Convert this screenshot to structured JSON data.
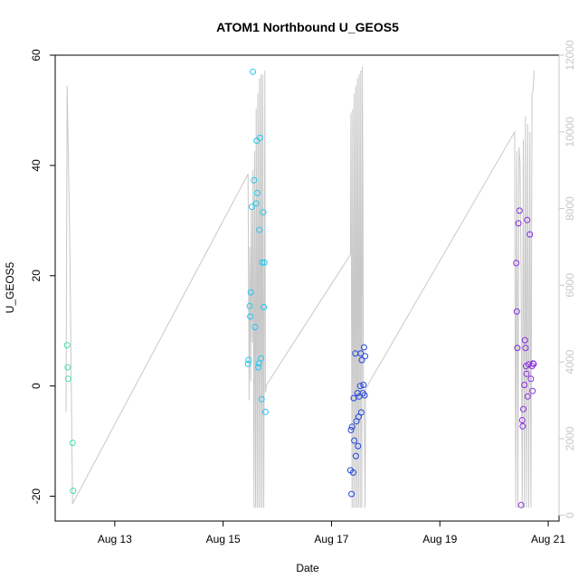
{
  "chart_data": {
    "type": "scatter",
    "title": "ATOM1 Northbound U_GEOS5",
    "xlabel": "Date",
    "ylabel": "U_GEOS5",
    "x_unit": "days since Aug 12 00:00",
    "xlim": [
      11.9,
      21.2
    ],
    "ylim": [
      -24.5,
      60
    ],
    "y2lim": [
      -150,
      12000
    ],
    "x_ticks": [
      {
        "value": 13,
        "label": "Aug 13"
      },
      {
        "value": 15,
        "label": "Aug 15"
      },
      {
        "value": 17,
        "label": "Aug 17"
      },
      {
        "value": 19,
        "label": "Aug 19"
      },
      {
        "value": 21,
        "label": "Aug 21"
      }
    ],
    "y_ticks": [
      -20,
      0,
      20,
      40,
      60
    ],
    "y2_ticks": [
      0,
      2000,
      4000,
      6000,
      8000,
      10000,
      12000
    ],
    "grid": false,
    "legend": "none",
    "colors": {
      "flight1": "#40e0b0",
      "flight2": "#22c8f0",
      "flight3": "#2244dd",
      "flight4": "#8a2be2",
      "altitude": "#c8c8c8",
      "axis": "#000000",
      "right_axis": "#c8c8c8"
    },
    "series": [
      {
        "color": "#40e0b0",
        "x": [
          12.12,
          12.13,
          12.14,
          12.22,
          12.23
        ],
        "y": [
          7.4,
          3.4,
          1.3,
          -10.3,
          -19.0
        ]
      },
      {
        "color": "#22c8f0",
        "x": [
          15.46,
          15.47,
          15.49,
          15.5,
          15.51,
          15.53,
          15.55,
          15.57,
          15.59,
          15.61,
          15.62,
          15.63,
          15.65,
          15.66,
          15.67,
          15.68,
          15.7,
          15.71,
          15.72,
          15.74,
          15.75,
          15.76,
          15.78
        ],
        "y": [
          4.0,
          4.7,
          14.5,
          12.6,
          17.0,
          32.5,
          57.0,
          37.3,
          10.7,
          33.1,
          44.5,
          35.0,
          3.4,
          4.1,
          28.3,
          45.0,
          5.0,
          -2.4,
          22.4,
          31.5,
          14.3,
          22.4,
          -4.7
        ]
      },
      {
        "color": "#2244dd",
        "x": [
          17.35,
          17.36,
          17.37,
          17.38,
          17.4,
          17.41,
          17.42,
          17.44,
          17.45,
          17.46,
          17.48,
          17.49,
          17.5,
          17.51,
          17.53,
          17.54,
          17.55,
          17.56,
          17.58,
          17.59,
          17.6,
          17.61,
          17.62
        ],
        "y": [
          -15.3,
          -8.0,
          -19.6,
          -7.4,
          -15.7,
          -2.2,
          -9.9,
          5.9,
          -12.7,
          -6.4,
          -1.3,
          -10.9,
          -5.6,
          -1.9,
          0.0,
          5.9,
          -4.8,
          4.7,
          -1.3,
          0.2,
          7.0,
          -1.7,
          5.4
        ]
      },
      {
        "color": "#8a2be2",
        "x": [
          20.41,
          20.42,
          20.43,
          20.45,
          20.47,
          20.5,
          20.52,
          20.53,
          20.54,
          20.56,
          20.57,
          20.58,
          20.59,
          20.6,
          20.61,
          20.62,
          20.64,
          20.66,
          20.68,
          20.7,
          20.71,
          20.72,
          20.73
        ],
        "y": [
          22.3,
          13.5,
          6.9,
          29.5,
          31.8,
          -21.6,
          -6.2,
          -7.3,
          -4.2,
          0.2,
          8.3,
          6.9,
          3.6,
          2.2,
          30.1,
          -1.9,
          3.9,
          27.5,
          1.3,
          3.6,
          -0.9,
          4.1,
          4.0
        ]
      }
    ],
    "altitude_line": {
      "color": "#c8c8c8",
      "axis": "right",
      "x": [
        12.1,
        12.12,
        12.17,
        12.2,
        12.22,
        15.46,
        15.48,
        15.49,
        15.51,
        15.52,
        15.54,
        15.55,
        15.57,
        15.58,
        15.6,
        15.61,
        15.63,
        15.64,
        15.66,
        15.67,
        15.69,
        15.7,
        15.72,
        15.73,
        15.75,
        15.77,
        15.78,
        15.8,
        17.35,
        17.36,
        17.38,
        17.39,
        17.41,
        17.42,
        17.44,
        17.45,
        17.47,
        17.48,
        17.5,
        17.51,
        17.53,
        17.54,
        17.56,
        17.57,
        17.59,
        17.6,
        17.62,
        17.63,
        20.38,
        20.4,
        20.42,
        20.44,
        20.46,
        20.48,
        20.5,
        20.52,
        20.54,
        20.56,
        20.58,
        20.6,
        20.62,
        20.64,
        20.66,
        20.68,
        20.7,
        20.72,
        20.74
      ],
      "y": [
        2700,
        11200,
        7000,
        3000,
        300,
        8900,
        3000,
        7000,
        3500,
        8000,
        4500,
        9000,
        200,
        9500,
        200,
        10600,
        200,
        11000,
        200,
        11400,
        200,
        11500,
        200,
        11500,
        200,
        11600,
        3200,
        3400,
        6800,
        10500,
        200,
        10600,
        200,
        11000,
        200,
        11200,
        200,
        11400,
        200,
        11500,
        200,
        11600,
        200,
        11700,
        3500,
        3200,
        200,
        3300,
        10000,
        200,
        9500,
        200,
        9600,
        9200,
        6000,
        200,
        9800,
        200,
        10400,
        200,
        10200,
        200,
        10000,
        200,
        11000,
        11100,
        11600
      ]
    }
  }
}
